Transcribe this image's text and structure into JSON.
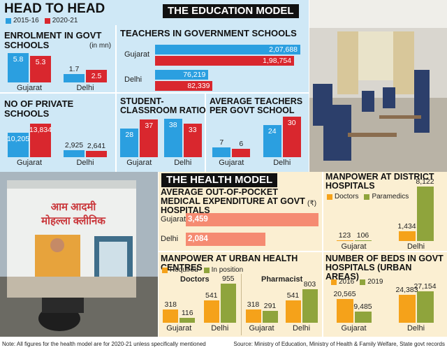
{
  "header": {
    "title": "HEAD TO HEAD",
    "education_title": "THE EDUCATION MODEL",
    "health_title": "THE HEALTH MODEL",
    "photo_sign": [
      "आम आदमी",
      "मोहल्ला क्लीनिक"
    ]
  },
  "chart_data": [
    {
      "type": "bar",
      "title": "ENROLMENT IN GOVT SCHOOLS",
      "unit": "(in mn)",
      "categories": [
        "Gujarat",
        "Delhi"
      ],
      "series": [
        {
          "name": "2015-16",
          "color": "#2b9fe0",
          "values": [
            5.8,
            1.7
          ]
        },
        {
          "name": "2020-21",
          "color": "#d9272e",
          "values": [
            5.3,
            2.5
          ]
        }
      ]
    },
    {
      "type": "barh",
      "title": "TEACHERS IN GOVERNMENT SCHOOLS",
      "categories": [
        "Gujarat",
        "Delhi"
      ],
      "series": [
        {
          "color": "#2b9fe0",
          "values": [
            207688,
            76219
          ],
          "value_labels": [
            "2,07,688",
            "76,219"
          ]
        },
        {
          "color": "#d9272e",
          "values": [
            198754,
            82339
          ],
          "value_labels": [
            "1,98,754",
            "82,339"
          ]
        }
      ]
    },
    {
      "type": "bar",
      "title": "NO OF PRIVATE SCHOOLS",
      "categories": [
        "Gujarat",
        "Delhi"
      ],
      "series": [
        {
          "color": "#2b9fe0",
          "values": [
            10205,
            2925
          ],
          "value_labels": [
            "10,205",
            "2,925"
          ]
        },
        {
          "color": "#d9272e",
          "values": [
            13834,
            2641
          ],
          "value_labels": [
            "13,834",
            "2,641"
          ]
        }
      ]
    },
    {
      "type": "bar",
      "title": "STUDENT-CLASSROOM RATIO",
      "categories": [
        "Gujarat",
        "Delhi"
      ],
      "series": [
        {
          "color": "#2b9fe0",
          "values": [
            28,
            38
          ]
        },
        {
          "color": "#d9272e",
          "values": [
            37,
            33
          ]
        }
      ]
    },
    {
      "type": "bar",
      "title": "AVERAGE TEACHERS PER GOVT SCHOOL",
      "categories": [
        "Gujarat",
        "Delhi"
      ],
      "series": [
        {
          "color": "#2b9fe0",
          "values": [
            7,
            24
          ]
        },
        {
          "color": "#d9272e",
          "values": [
            6,
            30
          ]
        }
      ]
    },
    {
      "type": "barh",
      "title": "AVERAGE OUT-OF-POCKET MEDICAL EXPENDITURE AT GOVT HOSPITALS",
      "unit": "(₹)",
      "categories": [
        "Gujarat",
        "Delhi"
      ],
      "series": [
        {
          "color": "#f58b72",
          "values": [
            3459,
            2084
          ],
          "value_labels": [
            "3,459",
            "2,084"
          ]
        }
      ]
    },
    {
      "type": "bar",
      "title": "MANPOWER AT DISTRICT HOSPITALS",
      "categories": [
        "Gujarat",
        "Delhi"
      ],
      "series": [
        {
          "name": "Doctors",
          "color": "#f5a21a",
          "values": [
            123,
            1434
          ],
          "value_labels": [
            "123",
            "1,434"
          ]
        },
        {
          "name": "Paramedics",
          "color": "#8fa43c",
          "values": [
            106,
            8122
          ],
          "value_labels": [
            "106",
            "8,122"
          ]
        }
      ]
    },
    {
      "type": "bar",
      "title": "MANPOWER AT URBAN HEALTH CENTRES",
      "subtitle": "Doctors",
      "categories": [
        "Gujarat",
        "Delhi"
      ],
      "series": [
        {
          "name": "Required",
          "color": "#f5a21a",
          "values": [
            318,
            541
          ]
        },
        {
          "name": "In position",
          "color": "#8fa43c",
          "values": [
            116,
            955
          ]
        }
      ]
    },
    {
      "type": "bar",
      "subtitle": "Pharmacist",
      "categories": [
        "Gujarat",
        "Delhi"
      ],
      "series": [
        {
          "color": "#f5a21a",
          "values": [
            318,
            541
          ]
        },
        {
          "color": "#8fa43c",
          "values": [
            291,
            803
          ]
        }
      ]
    },
    {
      "type": "bar",
      "title": "NUMBER OF BEDS IN GOVT HOSPITALS (URBAN AREAS)",
      "categories": [
        "Gujarat",
        "Delhi"
      ],
      "series": [
        {
          "name": "2016",
          "color": "#f5a21a",
          "values": [
            20565,
            24383
          ],
          "value_labels": [
            "20,565",
            "24,383"
          ]
        },
        {
          "name": "2019",
          "color": "#8fa43c",
          "values": [
            9485,
            27154
          ],
          "value_labels": [
            "9,485",
            "27,154"
          ]
        }
      ]
    }
  ],
  "footer": {
    "note": "Note: All figures for the health model are for 2020-21 unless specifically mentioned",
    "source": "Source: Ministry of Education, Ministry of Health & Family Welfare, State govt records"
  }
}
